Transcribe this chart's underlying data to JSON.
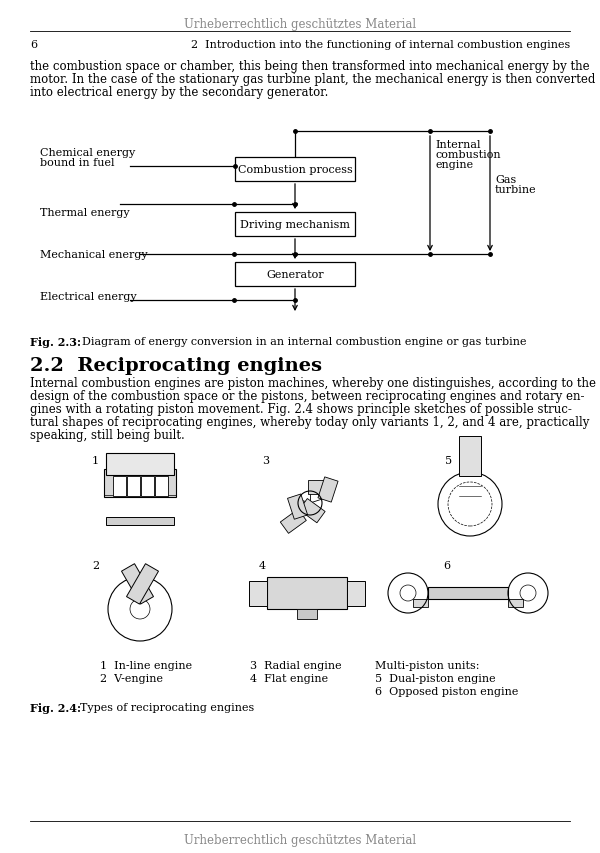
{
  "header_text": "Urheberrechtlich geschütztes Material",
  "footer_text": "Urheberrechtlich geschütztes Material",
  "page_number": "6",
  "chapter_header": "2  Introduction into the functioning of internal combustion engines",
  "intro_paragraph": "the combustion space or chamber, this being then transformed into mechanical energy by the motor. In the case of the stationary gas turbine plant, the mechanical energy is then converted into electrical energy by the secondary generator.",
  "fig23_caption_bold": "Fig. 2.3:",
  "fig23_caption_rest": "  Diagram of energy conversion in an internal combustion engine or gas turbine",
  "section_title": "2.2  Reciprocating engines",
  "body_paragraph": "Internal combustion engines are piston machines, whereby one distinguishes, according to the design of the combustion space or the pistons, between reciprocating engines and rotary engines with a rotating piston movement. Fig. 2.4 shows principle sketches of possible structural shapes of reciprocating engines, whereby today only variants 1, 2, and 4 are, practically speaking, still being built.",
  "fig24_caption_bold": "Fig. 2.4:",
  "fig24_caption_rest": "  Types of reciprocating engines",
  "background_color": "#ffffff"
}
